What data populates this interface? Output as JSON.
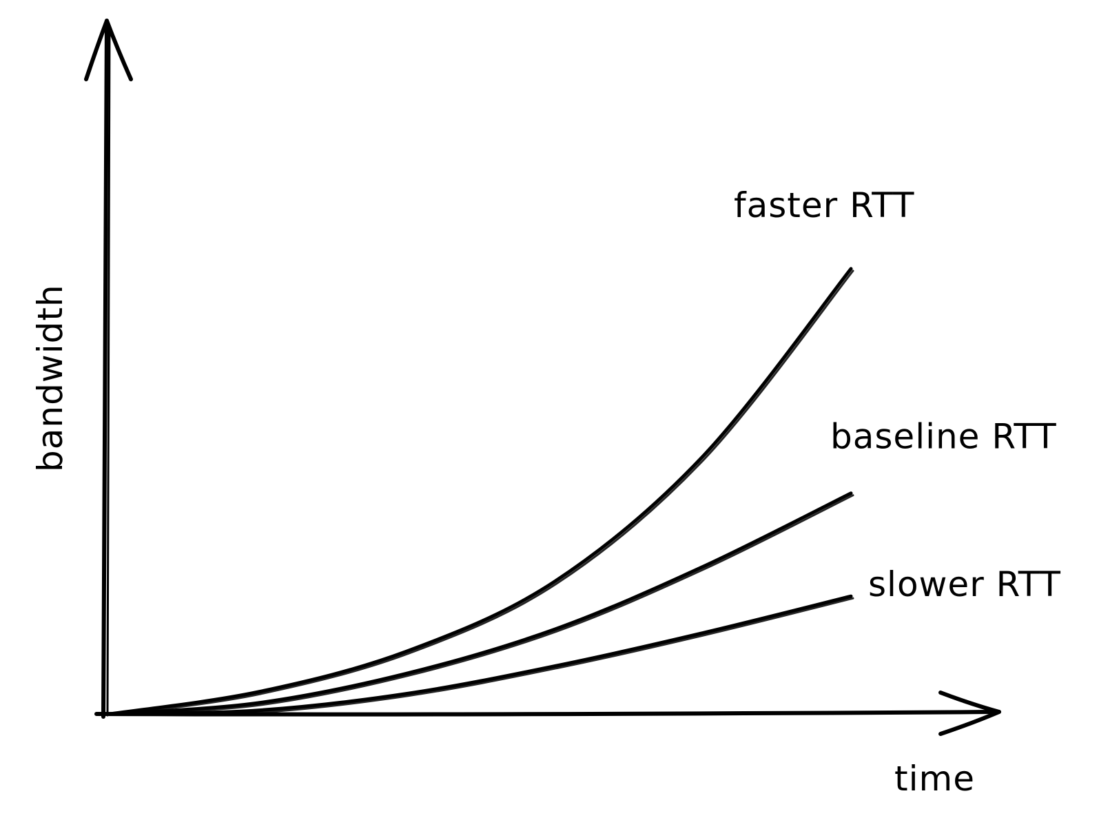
{
  "chart_data": {
    "type": "line",
    "title": "",
    "xlabel": "time",
    "ylabel": "bandwidth",
    "xlim": [
      0,
      10
    ],
    "ylim": [
      0,
      10
    ],
    "grid": false,
    "legend": "inline labels at line ends",
    "x": [
      0,
      2,
      4,
      6,
      8,
      10
    ],
    "series": [
      {
        "name": "faster RTT",
        "values": [
          0,
          0.6,
          1.7,
          3.6,
          7.0,
          12.1
        ]
      },
      {
        "name": "baseline RTT",
        "values": [
          0,
          0.3,
          1.1,
          2.3,
          4.0,
          6.0
        ]
      },
      {
        "name": "slower RTT",
        "values": [
          0,
          0.1,
          0.55,
          1.3,
          2.2,
          3.2
        ]
      }
    ]
  }
}
